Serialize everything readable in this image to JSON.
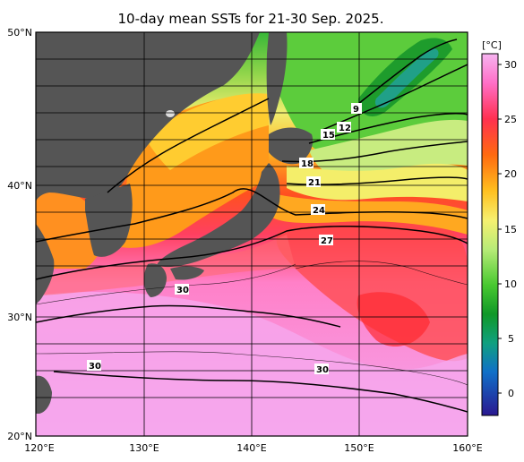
{
  "title": "10-day mean SSTs for 21-30 Sep. 2025.",
  "map": {
    "lon_range": [
      120,
      160
    ],
    "lat_range": [
      20,
      50
    ],
    "x_ticks": [
      "120°E",
      "130°E",
      "140°E",
      "150°E",
      "160°E"
    ],
    "y_ticks": [
      "50°N",
      "40°N",
      "30°N",
      "20°N"
    ],
    "land_color": "#555555",
    "grid_color": "#000000",
    "contour_labels": [
      "9",
      "12",
      "15",
      "18",
      "21",
      "24",
      "27",
      "30",
      "30",
      "30"
    ]
  },
  "colorbar": {
    "unit": "[°C]",
    "tick_labels": [
      "30",
      "25",
      "20",
      "15",
      "10",
      "5",
      "0"
    ],
    "colors": [
      "#f2a0ec",
      "#ff5ab4",
      "#ff2a2a",
      "#ff7a1a",
      "#ffc82a",
      "#f0f060",
      "#c8f080",
      "#60d040",
      "#20a020",
      "#10a080",
      "#1060c0",
      "#2020a0"
    ]
  }
}
